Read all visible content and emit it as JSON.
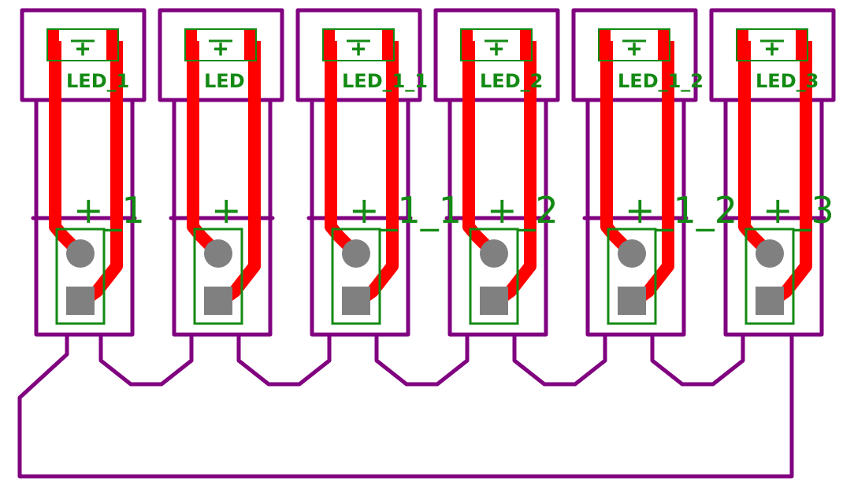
{
  "colors": {
    "outline": "#800080",
    "trace": "#ff0000",
    "silk": "#138a13",
    "pad": "#808080",
    "background": "#ffffff"
  },
  "modules": [
    {
      "id": "led-1",
      "led_label": "LED_1",
      "pad_label": "+_1"
    },
    {
      "id": "led",
      "led_label": "LED",
      "pad_label": "+"
    },
    {
      "id": "led-1-1",
      "led_label": "LED_1_1",
      "pad_label": "+_1_1"
    },
    {
      "id": "led-2",
      "led_label": "LED_2",
      "pad_label": "+_2"
    },
    {
      "id": "led-1-2",
      "led_label": "LED_1_2",
      "pad_label": "+_1_2"
    },
    {
      "id": "led-3",
      "led_label": "LED_3",
      "pad_label": "+_3"
    }
  ],
  "led_symbol": "+"
}
